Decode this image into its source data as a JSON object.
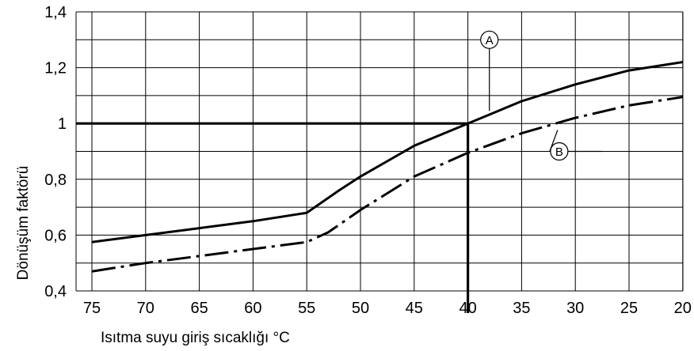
{
  "chart_data": {
    "type": "line",
    "xlabel": "Isıtma suyu giriş sıcaklığı °C",
    "ylabel": "Dönüşüm faktörü",
    "xlim": [
      75,
      20
    ],
    "ylim": [
      0.4,
      1.4
    ],
    "x_ticks": [
      "75",
      "70",
      "65",
      "60",
      "55",
      "50",
      "45",
      "40",
      "35",
      "30",
      "25",
      "20"
    ],
    "y_ticks": [
      "0,4",
      "0,6",
      "0,8",
      "1",
      "1,2",
      "1,4"
    ],
    "grid": true,
    "series": [
      {
        "name": "A",
        "line_style": "solid",
        "x": [
          75,
          70,
          65,
          60,
          55,
          52,
          50,
          45,
          40,
          35,
          30,
          25,
          20
        ],
        "y": [
          0.575,
          0.6,
          0.625,
          0.65,
          0.68,
          0.76,
          0.81,
          0.92,
          1.0,
          1.08,
          1.14,
          1.19,
          1.22
        ]
      },
      {
        "name": "B",
        "line_style": "dash-dot",
        "x": [
          75,
          70,
          65,
          60,
          55,
          53,
          50,
          45,
          40,
          35,
          30,
          25,
          20
        ],
        "y": [
          0.47,
          0.5,
          0.525,
          0.55,
          0.575,
          0.61,
          0.69,
          0.81,
          0.895,
          0.965,
          1.02,
          1.065,
          1.095
        ]
      }
    ],
    "reference_lines": [
      {
        "orientation": "horizontal",
        "value": 1,
        "from_x": 75,
        "to_x": 40
      },
      {
        "orientation": "vertical",
        "value": 40,
        "from_y": 1,
        "to_y": 0.4
      }
    ],
    "markers": [
      {
        "label": "A",
        "series": "A",
        "x": 38,
        "y": 1.3,
        "leader_y": 1.045
      },
      {
        "label": "B",
        "series": "B",
        "x": 31.5,
        "y": 0.9,
        "leader_x_end": 27.5
      }
    ]
  }
}
